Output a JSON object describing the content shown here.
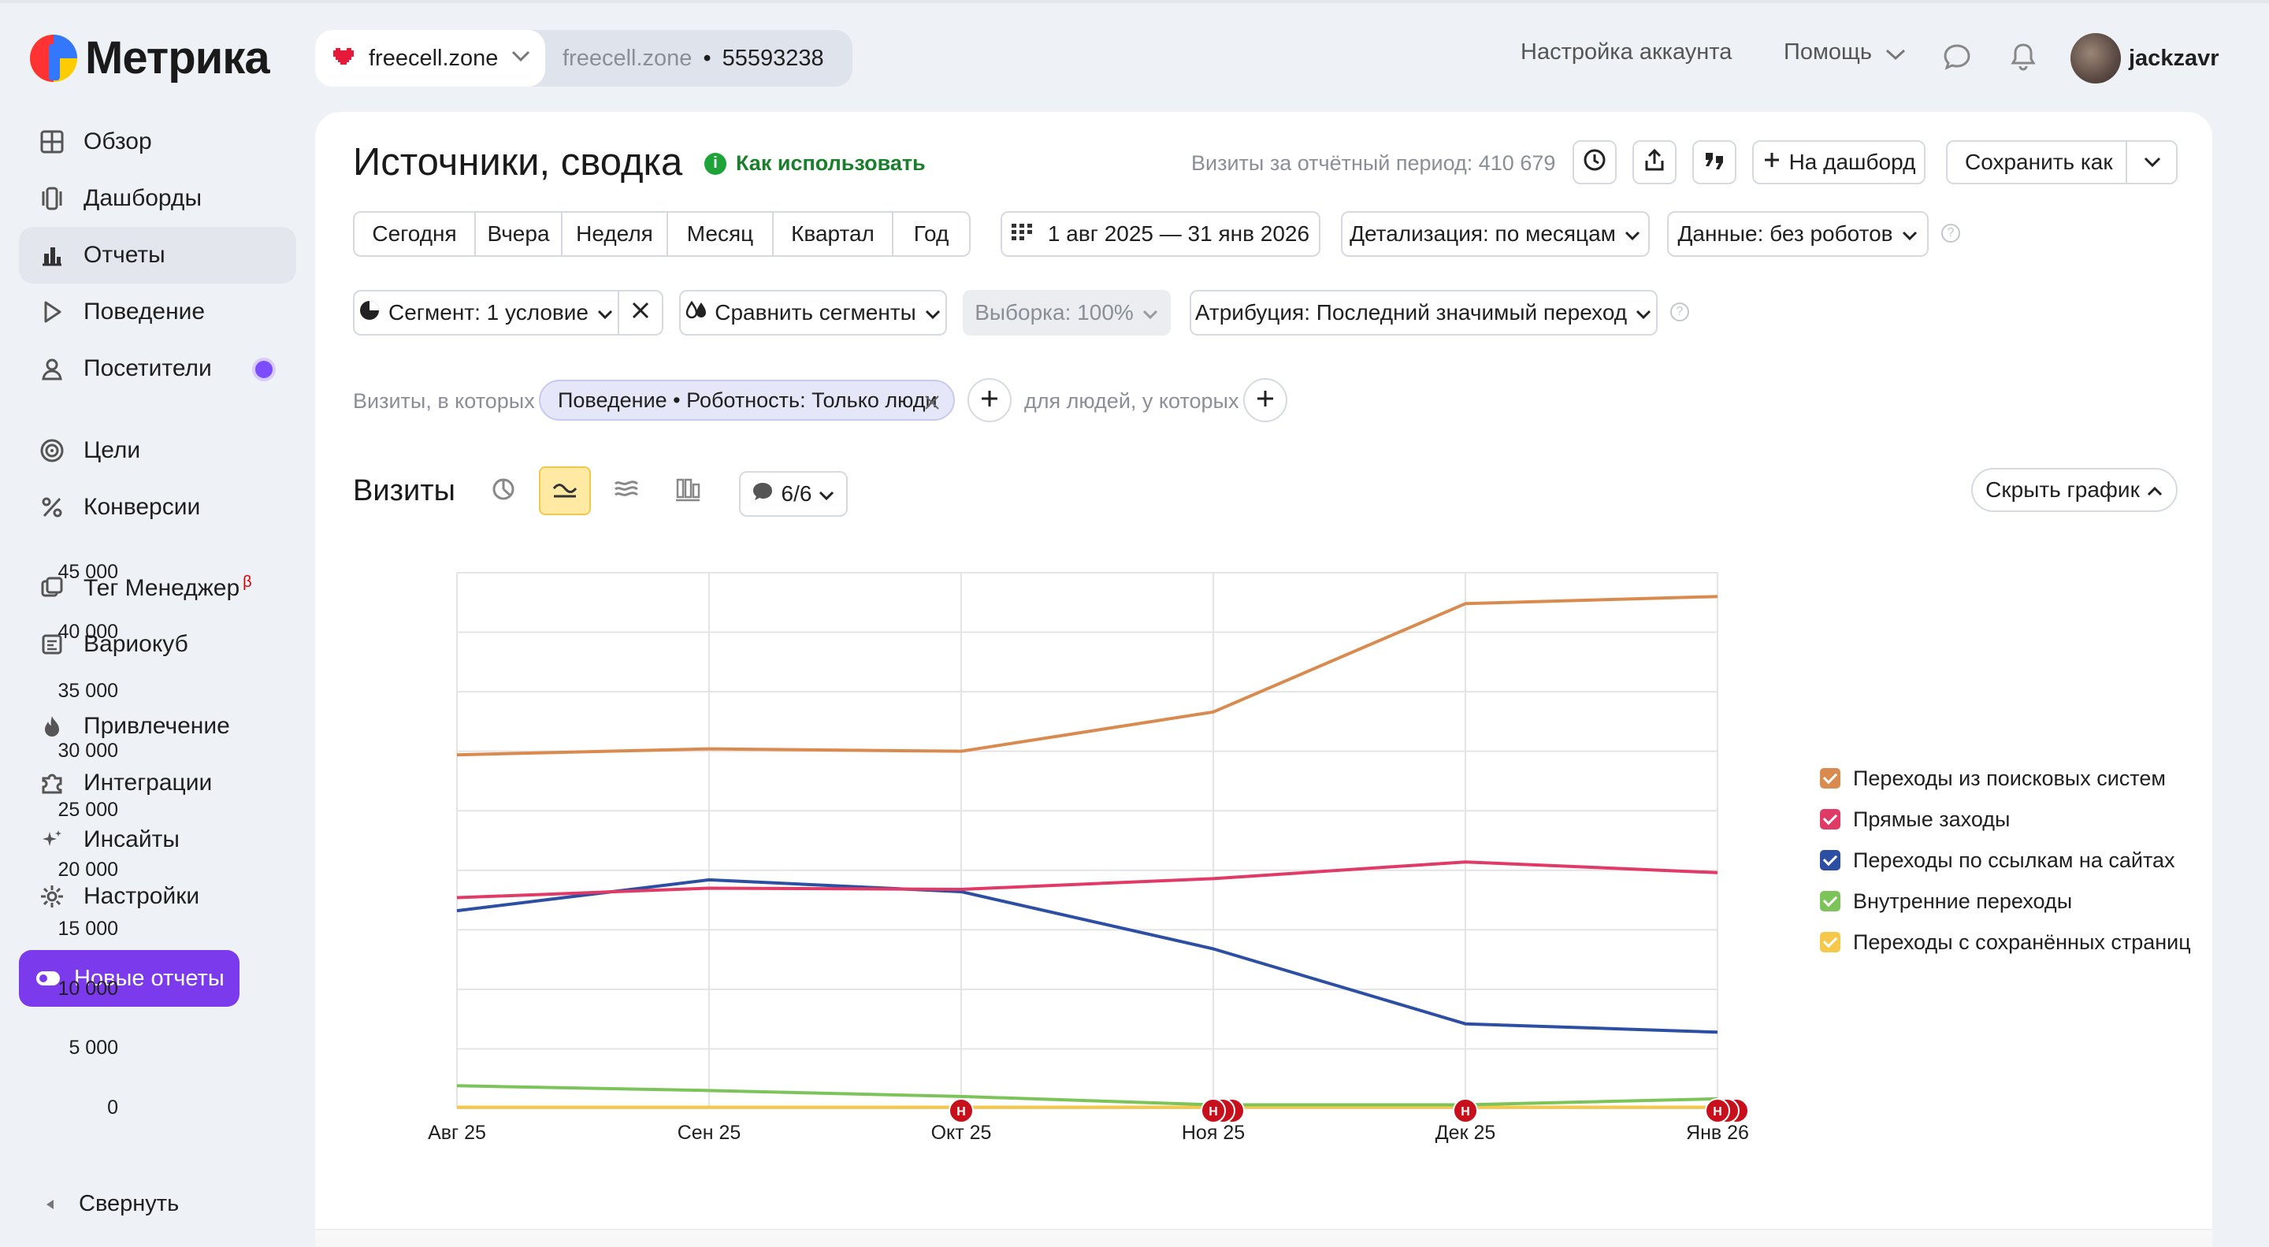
{
  "app": {
    "logo_text": "Метрика"
  },
  "header": {
    "site_active": "freecell.zone",
    "site_other_domain": "freecell.zone",
    "site_other_sep": "•",
    "site_other_id": "55593238",
    "account_settings": "Настройка аккаунта",
    "help": "Помощь",
    "username": "jackzavr"
  },
  "sidebar": {
    "items": [
      {
        "label": "Обзор",
        "icon": "grid-icon"
      },
      {
        "label": "Дашборды",
        "icon": "dashboards-icon"
      },
      {
        "label": "Отчеты",
        "icon": "bar-chart-icon"
      },
      {
        "label": "Поведение",
        "icon": "play-icon"
      },
      {
        "label": "Посетители",
        "icon": "person-icon"
      },
      {
        "label": "Цели",
        "icon": "target-icon"
      },
      {
        "label": "Конверсии",
        "icon": "percent-icon"
      },
      {
        "label": "Тег Менеджер",
        "icon": "tag-manager-icon",
        "badge": "β"
      },
      {
        "label": "Вариокуб",
        "icon": "variocube-icon"
      },
      {
        "label": "Привлечение",
        "icon": "flame-icon"
      },
      {
        "label": "Интеграции",
        "icon": "puzzle-icon"
      },
      {
        "label": "Инсайты",
        "icon": "sparkle-icon"
      },
      {
        "label": "Настройки",
        "icon": "gear-icon"
      }
    ],
    "active_index": 2,
    "new_reports": "Новые отчеты",
    "collapse": "Свернуть"
  },
  "report": {
    "title": "Источники, сводка",
    "howto": "Как использовать",
    "visits_period": "Визиты за отчётный период: 410 679",
    "to_dashboard": "На дашборд",
    "save_as": "Сохранить как",
    "periods": [
      "Сегодня",
      "Вчера",
      "Неделя",
      "Месяц",
      "Квартал",
      "Год"
    ],
    "date_range": "1 авг 2025 — 31 янв 2026",
    "detail": "Детализация: по месяцам",
    "data_filter": "Данные: без роботов",
    "segment": "Сегмент: 1 условие",
    "compare_segments": "Сравнить сегменты",
    "sample": "Выборка: 100%",
    "attribution": "Атрибуция: Последний значимый переход",
    "filter_prefix": "Визиты, в которых",
    "filter_chip": "Поведение • Роботность: Только люди",
    "filter_people": "для людей, у которых",
    "visits_title": "Визиты",
    "series_count": "6/6",
    "hide_chart": "Скрыть график"
  },
  "chart_data": {
    "type": "line",
    "x": [
      "Авг 25",
      "Сен 25",
      "Окт 25",
      "Ноя 25",
      "Дек 25",
      "Янв 26"
    ],
    "ylim": [
      0,
      45000
    ],
    "yticks": [
      "0",
      "5 000",
      "10 000",
      "15 000",
      "20 000",
      "25 000",
      "30 000",
      "35 000",
      "40 000",
      "45 000"
    ],
    "grid": true,
    "legend_position": "right",
    "series": [
      {
        "name": "Переходы из поисковых систем",
        "color": "#d98b4f",
        "values": [
          29700,
          30200,
          30000,
          33300,
          42400,
          43000
        ]
      },
      {
        "name": "Прямые заходы",
        "color": "#e03a66",
        "values": [
          17700,
          18500,
          18400,
          19300,
          20700,
          19800
        ]
      },
      {
        "name": "Переходы по ссылкам на сайтах",
        "color": "#2d4fa3",
        "values": [
          16600,
          19200,
          18200,
          13400,
          7100,
          6400
        ]
      },
      {
        "name": "Внутренние переходы",
        "color": "#7cc35a",
        "values": [
          1900,
          1500,
          1000,
          300,
          300,
          800
        ]
      },
      {
        "name": "Переходы с сохранённых страниц",
        "color": "#f5c84a",
        "values": [
          100,
          100,
          100,
          100,
          100,
          100
        ]
      }
    ],
    "annotations": [
      {
        "x": "Окт 25",
        "label": "Н"
      },
      {
        "x": "Ноя 25",
        "label": "Н"
      },
      {
        "x": "Дек 25",
        "label": "Н"
      },
      {
        "x": "Янв 26",
        "label": "Н"
      }
    ]
  }
}
